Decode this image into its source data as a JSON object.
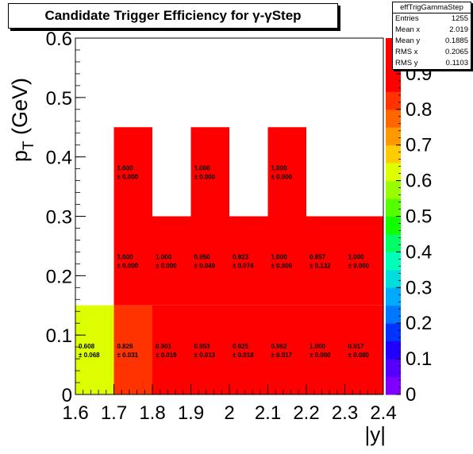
{
  "colors": {
    "palette": [
      "#7f00ff",
      "#5500ff",
      "#2200ff",
      "#0033ff",
      "#0077ff",
      "#00aaff",
      "#00dddd",
      "#00ffbb",
      "#00ff66",
      "#11ff00",
      "#55ff00",
      "#99ff00",
      "#ddff00",
      "#ffcc00",
      "#ff9900",
      "#ff6600",
      "#ff3300",
      "#ff0000",
      "#ff0000",
      "#ff0000"
    ],
    "background": "#ffffff",
    "axis": "#000000"
  },
  "stats": {
    "name": "effTrigGammaStep",
    "rows": [
      {
        "label": "Entries",
        "value": "1255"
      },
      {
        "label": "Mean x",
        "value": "2.019"
      },
      {
        "label": "Mean y",
        "value": "0.1885"
      },
      {
        "label": "RMS x",
        "value": "0.2065"
      },
      {
        "label": "RMS y",
        "value": "0.1103"
      }
    ]
  },
  "chart_data": {
    "type": "heatmap",
    "title": "Candidate Trigger Efficiency for γ-γStep",
    "xlabel": "|y|",
    "ylabel": "p_T (GeV)",
    "xlim": [
      1.6,
      2.4
    ],
    "ylim": [
      0,
      0.6
    ],
    "zlim": [
      0,
      1.0
    ],
    "x_ticks": [
      "1.6",
      "1.7",
      "1.8",
      "1.9",
      "2",
      "2.1",
      "2.2",
      "2.3",
      "2.4"
    ],
    "y_ticks": [
      "0",
      "0.1",
      "0.2",
      "0.3",
      "0.4",
      "0.5",
      "0.6"
    ],
    "z_ticks": [
      "0",
      "0.1",
      "0.2",
      "0.3",
      "0.4",
      "0.5",
      "0.6",
      "0.7",
      "0.8",
      "0.9"
    ],
    "grid": false,
    "cells": [
      {
        "x": [
          1.6,
          1.7
        ],
        "y": [
          0,
          0.15
        ],
        "z": 0.608,
        "label": "0.608",
        "err": "± 0.068"
      },
      {
        "x": [
          1.7,
          1.8
        ],
        "y": [
          0,
          0.15
        ],
        "z": 0.826,
        "label": "0.826",
        "err": "± 0.031"
      },
      {
        "x": [
          1.8,
          1.9
        ],
        "y": [
          0,
          0.15
        ],
        "z": 0.901,
        "label": "0.901",
        "err": "± 0.019"
      },
      {
        "x": [
          1.9,
          2.0
        ],
        "y": [
          0,
          0.15
        ],
        "z": 0.953,
        "label": "0.953",
        "err": "± 0.013"
      },
      {
        "x": [
          2.0,
          2.1
        ],
        "y": [
          0,
          0.15
        ],
        "z": 0.925,
        "label": "0.925",
        "err": "± 0.018"
      },
      {
        "x": [
          2.1,
          2.2
        ],
        "y": [
          0,
          0.15
        ],
        "z": 0.962,
        "label": "0.962",
        "err": "± 0.017"
      },
      {
        "x": [
          2.2,
          2.3
        ],
        "y": [
          0,
          0.15
        ],
        "z": 1.0,
        "label": "1.000",
        "err": "± 0.000"
      },
      {
        "x": [
          2.3,
          2.4
        ],
        "y": [
          0,
          0.15
        ],
        "z": 0.917,
        "label": "0.917",
        "err": "± 0.080"
      },
      {
        "x": [
          1.7,
          1.8
        ],
        "y": [
          0.15,
          0.3
        ],
        "z": 1.0,
        "label": "1.000",
        "err": "± 0.000"
      },
      {
        "x": [
          1.8,
          1.9
        ],
        "y": [
          0.15,
          0.3
        ],
        "z": 1.0,
        "label": "1.000",
        "err": "± 0.000"
      },
      {
        "x": [
          1.9,
          2.0
        ],
        "y": [
          0.15,
          0.3
        ],
        "z": 0.95,
        "label": "0.950",
        "err": "± 0.049"
      },
      {
        "x": [
          2.0,
          2.1
        ],
        "y": [
          0.15,
          0.3
        ],
        "z": 0.923,
        "label": "0.923",
        "err": "± 0.074"
      },
      {
        "x": [
          2.1,
          2.2
        ],
        "y": [
          0.15,
          0.3
        ],
        "z": 1.0,
        "label": "1.000",
        "err": "± 0.000"
      },
      {
        "x": [
          2.2,
          2.3
        ],
        "y": [
          0.15,
          0.3
        ],
        "z": 0.857,
        "label": "0.857",
        "err": "± 0.132"
      },
      {
        "x": [
          2.3,
          2.4
        ],
        "y": [
          0.15,
          0.3
        ],
        "z": 1.0,
        "label": "1.000",
        "err": "± 0.000"
      },
      {
        "x": [
          1.7,
          1.8
        ],
        "y": [
          0.3,
          0.45
        ],
        "z": 1.0,
        "label": "1.000",
        "err": "± 0.000"
      },
      {
        "x": [
          1.9,
          2.0
        ],
        "y": [
          0.3,
          0.45
        ],
        "z": 1.0,
        "label": "1.000",
        "err": "± 0.000"
      },
      {
        "x": [
          2.1,
          2.2
        ],
        "y": [
          0.3,
          0.45
        ],
        "z": 1.0,
        "label": "1.000",
        "err": "± 0.000"
      }
    ]
  }
}
